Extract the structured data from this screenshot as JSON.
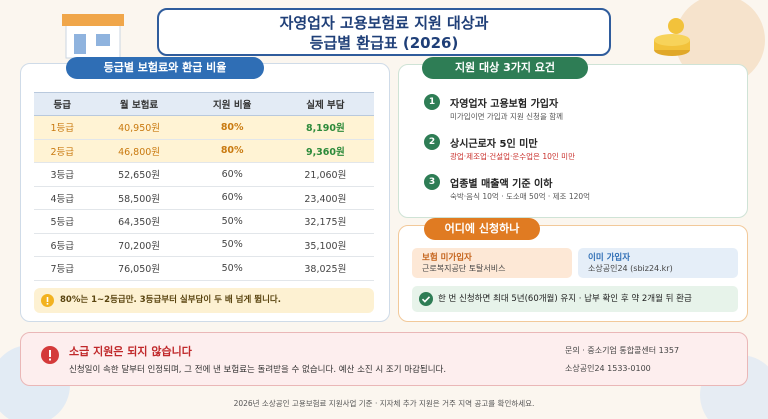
{
  "header": {
    "title": [
      "자영업자 고용보험료 지원 대상과",
      "등급별 환급표 (2026)"
    ]
  },
  "rate_panel": {
    "heading": "등급별 보험료와 환급 비율",
    "table": {
      "columns": [
        "등급",
        "월 보험료",
        "지원 비율",
        "실제 부담"
      ],
      "rows": [
        [
          "1등급",
          "40,950원",
          "80%",
          "8,190원"
        ],
        [
          "2등급",
          "46,800원",
          "80%",
          "9,360원"
        ],
        [
          "3등급",
          "52,650원",
          "60%",
          "21,060원"
        ],
        [
          "4등급",
          "58,500원",
          "60%",
          "23,400원"
        ],
        [
          "5등급",
          "64,350원",
          "50%",
          "32,175원"
        ],
        [
          "6등급",
          "70,200원",
          "50%",
          "35,100원"
        ],
        [
          "7등급",
          "76,050원",
          "50%",
          "38,025원"
        ]
      ]
    },
    "note": "80%는 1~2등급만. 3등급부터 실부담이 두 배 넘게 뜁니다."
  },
  "requirements": {
    "heading": "지원 대상 3가지 요건",
    "items": [
      {
        "number": "1",
        "title": "자영업자 고용보험 가입자",
        "detail": "미가입이면 가입과 지원 신청을 함께"
      },
      {
        "number": "2",
        "title": "상시근로자 5인 미만",
        "detail": "광업·제조업·건설업·운수업은 10인 미만"
      },
      {
        "number": "3",
        "title": "업종별 매출액 기준 이하",
        "detail": "숙박·음식 10억 · 도소매 50억 · 제조 120억"
      }
    ]
  },
  "apply": {
    "heading": "어디에 신청하나",
    "options": [
      {
        "title": "보험 미가입자",
        "detail": "근로복지공단 토탈서비스"
      },
      {
        "title": "이미 가입자",
        "detail": "소상공인24 (sbiz24.kr)"
      }
    ],
    "note": "한 번 신청하면 최대 5년(60개월) 유지 · 납부 확인 후 약 2개월 뒤 환급"
  },
  "alert": {
    "title": "소급 지원은 되지 않습니다",
    "body": "신청일이 속한 달부터 인정되며, 그 전에 낸 보험료는 돌려받을 수 없습니다. 예산 소진 시 조기 마감됩니다.",
    "contacts": [
      "문의 · 중소기업 통합콜센터 1357",
      "소상공인24 1533-0100"
    ]
  },
  "footer": "2026년 소상공인 고용보험료 지원사업 기준 · 지자체 추가 지원은 거주 지역 공고를 확인하세요."
}
